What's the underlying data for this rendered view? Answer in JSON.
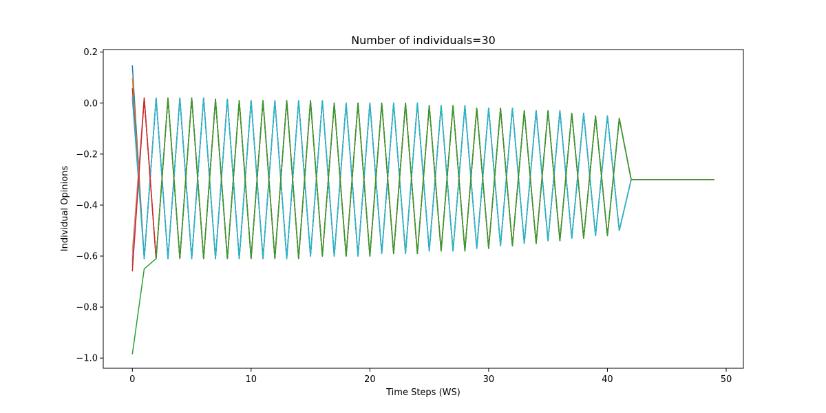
{
  "chart_data": {
    "type": "line",
    "title": "Number of individuals=30",
    "xlabel": "Time Steps (WS)",
    "ylabel": "Individual Opinions",
    "xlim": [
      -2.45,
      51.45
    ],
    "ylim": [
      -1.04,
      0.21
    ],
    "xticks": [
      0,
      10,
      20,
      30,
      40,
      50
    ],
    "xtick_labels": [
      "0",
      "10",
      "20",
      "30",
      "40",
      "50"
    ],
    "yticks": [
      -1.0,
      -0.8,
      -0.6,
      -0.4,
      -0.2,
      0.0,
      0.2
    ],
    "ytick_labels": [
      "−1.0",
      "−0.8",
      "−0.6",
      "−0.4",
      "−0.2",
      "0.0",
      "0.2"
    ],
    "grid": false,
    "legend": "none",
    "consensus_value": -0.3,
    "series": [
      {
        "color": "#1f77b4",
        "start": 0.148,
        "phase": "down"
      },
      {
        "color": "#ff7f0e",
        "start": 0.1,
        "phase": "down"
      },
      {
        "color": "#d62728",
        "start": 0.058,
        "phase": "down"
      },
      {
        "color": "#9467bd",
        "start": 0.02,
        "phase": "down"
      },
      {
        "color": "#17becf",
        "start": 0.03,
        "phase": "down"
      },
      {
        "color": "#bcbd22",
        "start": -0.58,
        "phase": "up"
      },
      {
        "color": "#8c564b",
        "start": -0.62,
        "phase": "up"
      },
      {
        "color": "#e377c2",
        "start": -0.6,
        "phase": "up"
      },
      {
        "color": "#7f7f7f",
        "start": -0.64,
        "phase": "up"
      },
      {
        "color": "#d62728",
        "start": -0.66,
        "phase": "up"
      },
      {
        "color": "#2ca02c",
        "start": -0.985,
        "phase": "up"
      }
    ],
    "oscillation": {
      "upper_peaks": [
        0.02,
        0.02,
        0.02,
        0.015,
        0.01,
        0.01,
        0.01,
        0.01,
        0.0,
        0.0,
        0.0,
        0.0,
        -0.01,
        -0.01,
        -0.02,
        -0.02,
        -0.03,
        -0.03,
        -0.04,
        -0.05,
        -0.06,
        -0.07,
        -0.08,
        -0.09,
        -0.1,
        -0.11,
        -0.13,
        -0.15,
        -0.17,
        -0.2,
        -0.25,
        -0.29
      ],
      "lower_peaks": [
        -0.61,
        -0.61,
        -0.61,
        -0.61,
        -0.61,
        -0.61,
        -0.61,
        -0.6,
        -0.6,
        -0.6,
        -0.59,
        -0.59,
        -0.58,
        -0.58,
        -0.57,
        -0.56,
        -0.55,
        -0.54,
        -0.53,
        -0.52,
        -0.5,
        -0.49,
        -0.47,
        -0.45,
        -0.43,
        -0.41,
        -0.38,
        -0.34,
        -0.31
      ],
      "end_step": 49
    }
  }
}
